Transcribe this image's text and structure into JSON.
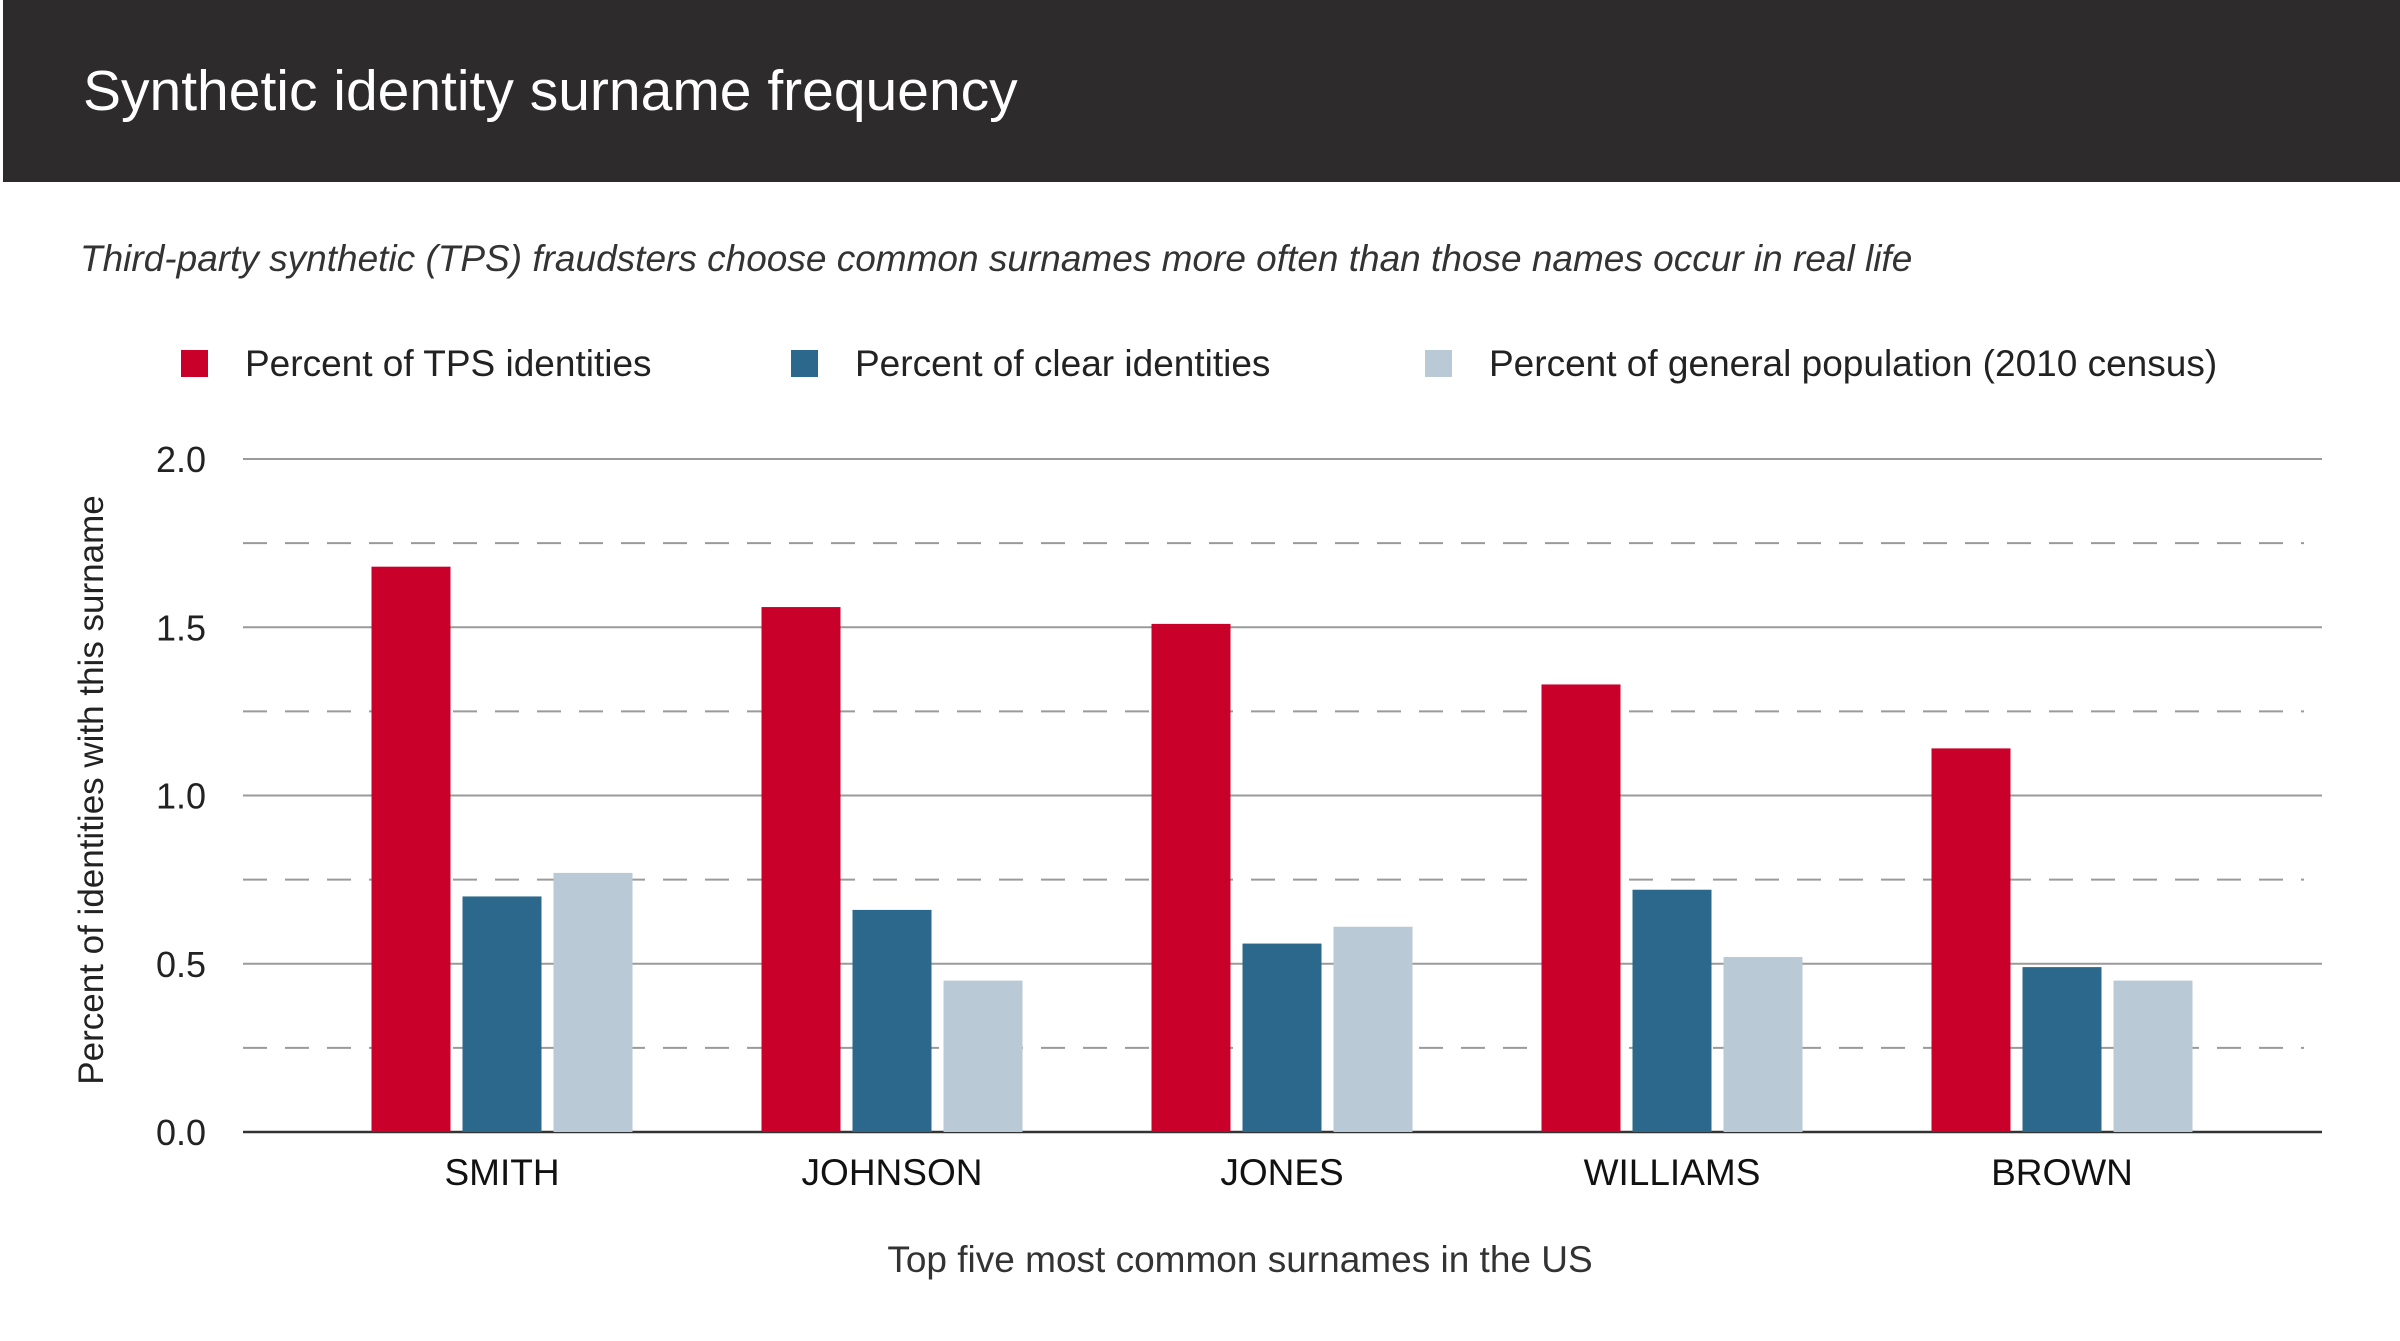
{
  "header": {
    "title": "Synthetic identity surname frequency",
    "subtitle": "Third-party synthetic (TPS) fraudsters choose common surnames more often than those names occur in real life"
  },
  "chart_data": {
    "type": "bar",
    "title": "Synthetic identity surname frequency",
    "subtitle": "Third-party synthetic (TPS) fraudsters choose common surnames more often than those names occur in real life",
    "xlabel": "Top five most common surnames in the US",
    "ylabel": "Percent of identities with this surname",
    "categories": [
      "SMITH",
      "JOHNSON",
      "JONES",
      "WILLIAMS",
      "BROWN"
    ],
    "series": [
      {
        "name": "Percent of TPS identities",
        "color": "#c8002a",
        "values": [
          1.68,
          1.56,
          1.51,
          1.33,
          1.14
        ]
      },
      {
        "name": "Percent of clear identities",
        "color": "#2b688b",
        "values": [
          0.7,
          0.66,
          0.56,
          0.72,
          0.49
        ]
      },
      {
        "name": "Percent of general population (2010 census)",
        "color": "#b9cad6",
        "values": [
          0.77,
          0.45,
          0.61,
          0.52,
          0.45
        ]
      }
    ],
    "ylim": [
      0,
      2.0
    ],
    "yticks": [
      "0.0",
      "0.5",
      "1.0",
      "1.5",
      "2.0"
    ],
    "grid": true,
    "legend": "top"
  }
}
